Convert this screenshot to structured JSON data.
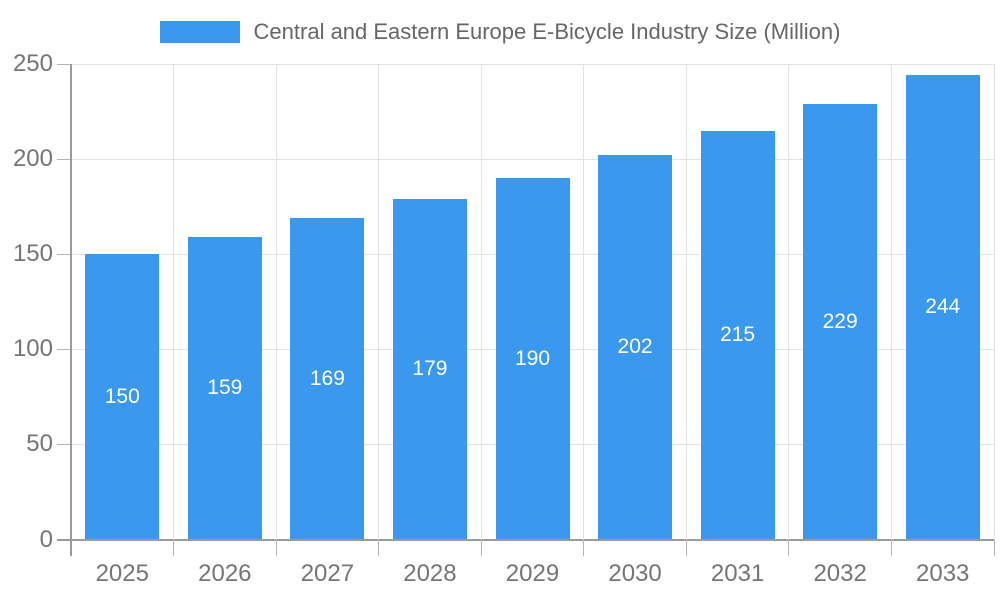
{
  "chart_data": {
    "type": "bar",
    "title": "Central and Eastern Europe E-Bicycle Industry Size (Million)",
    "categories": [
      "2025",
      "2026",
      "2027",
      "2028",
      "2029",
      "2030",
      "2031",
      "2032",
      "2033"
    ],
    "values": [
      150,
      159,
      169,
      179,
      190,
      202,
      215,
      229,
      244
    ],
    "xlabel": "",
    "ylabel": "",
    "ylim": [
      0,
      250
    ],
    "yticks": [
      0,
      50,
      100,
      150,
      200,
      250
    ],
    "grid": true,
    "legend_position": "top",
    "value_label_position": "inside-center",
    "colors": {
      "bar": "#3a99ee",
      "grid": "#e3e3e3",
      "axis": "#9b9b9b",
      "tick": "#b3b3b3",
      "tick_label": "#757575",
      "legend_text": "#666666",
      "value_label": "#ffffff",
      "background": "#ffffff"
    }
  }
}
